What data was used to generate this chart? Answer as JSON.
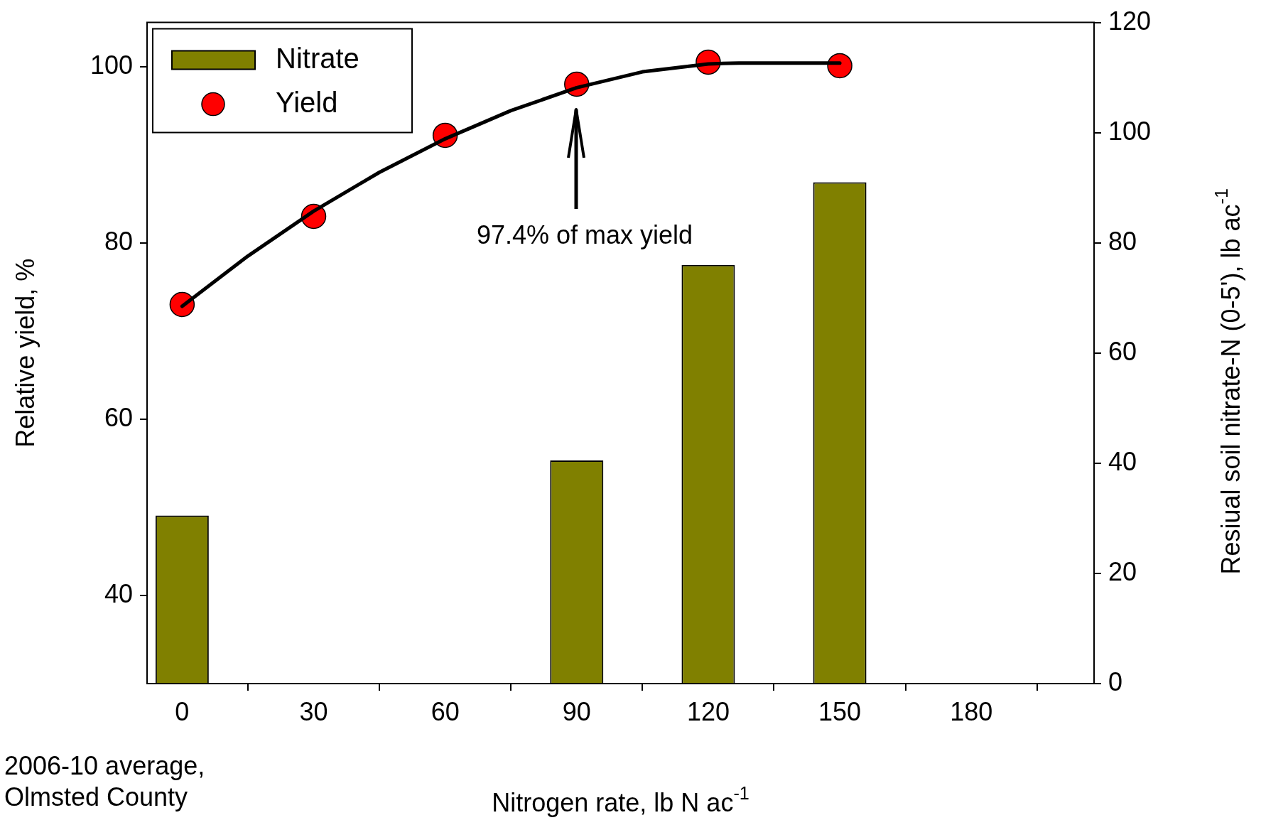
{
  "chart_data": {
    "type": "bar",
    "xlabel": "Nitrogen rate, lb N ac$^{-1}$",
    "ylabel": "Relative yield, %",
    "y2label": "Resiual soil nitrate-N (0-5'), lb ac$^{-1}$",
    "xlim": [
      -8,
      208
    ],
    "xticks": [
      0,
      30,
      60,
      90,
      120,
      150,
      180
    ],
    "ylim": [
      30,
      105
    ],
    "yticks": [
      40,
      60,
      80,
      100
    ],
    "y2lim": [
      0,
      120
    ],
    "y2ticks": [
      0,
      20,
      40,
      60,
      80,
      100,
      120
    ],
    "series": [
      {
        "name": "Nitrate",
        "axis": "y2",
        "color": "#808000",
        "x": [
          0,
          90,
          120,
          150
        ],
        "values": [
          30.5,
          40.5,
          76,
          91
        ]
      },
      {
        "name": "Yield",
        "type": "scatter",
        "marker": "circle",
        "color": "#ff0000",
        "x": [
          0,
          30,
          60,
          90,
          120,
          150
        ],
        "values": [
          73,
          83,
          92.2,
          98,
          100.5,
          100.1
        ]
      },
      {
        "type": "line",
        "marker": "none",
        "color": "#000000",
        "x": [
          0,
          15,
          30,
          45,
          60,
          75,
          90,
          105,
          120,
          127,
          150
        ],
        "values": [
          72.8,
          78.5,
          83.6,
          88,
          91.8,
          95,
          97.6,
          99.4,
          100.3,
          100.4,
          100.4
        ]
      }
    ],
    "annotations": [
      "97.4% of max yield",
      "2006-10 average, Olmsted County"
    ],
    "legend": "top left",
    "grid": false
  }
}
